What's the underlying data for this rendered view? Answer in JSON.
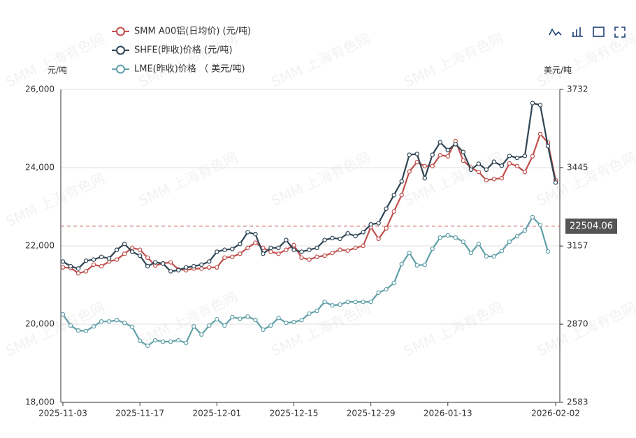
{
  "chart_data": {
    "type": "line",
    "watermark": "SMM 上海有色网",
    "y_label": "元/吨",
    "y2_label": "美元/吨",
    "categories": [
      "2025-11-03",
      null,
      null,
      null,
      null,
      null,
      null,
      null,
      null,
      null,
      "2025-11-17",
      null,
      null,
      null,
      null,
      null,
      null,
      null,
      null,
      null,
      "2025-12-01",
      null,
      null,
      null,
      null,
      null,
      null,
      null,
      null,
      null,
      "2025-12-15",
      null,
      null,
      null,
      null,
      null,
      null,
      null,
      null,
      null,
      "2025-12-29",
      null,
      null,
      null,
      null,
      null,
      null,
      null,
      null,
      null,
      "2026-01-13",
      null,
      null,
      null,
      null,
      null,
      null,
      null,
      null,
      null,
      null,
      null,
      null,
      null,
      "2026-02-02"
    ],
    "series": [
      {
        "name": "SMM A00铝(日均价)  (元/吨)",
        "color": "#c0504d",
        "axis": "y",
        "values": [
          21450,
          21440,
          21300,
          21350,
          21520,
          21480,
          21600,
          21650,
          21800,
          21950,
          21900,
          21700,
          21500,
          21550,
          21580,
          21400,
          21380,
          21420,
          21420,
          21450,
          21450,
          21700,
          21720,
          21800,
          21950,
          22080,
          21950,
          21850,
          21800,
          21900,
          22020,
          21700,
          21650,
          21720,
          21750,
          21820,
          21900,
          21880,
          21950,
          22000,
          22480,
          22180,
          22450,
          22880,
          23300,
          23900,
          24140,
          24040,
          24040,
          24320,
          24290,
          24680,
          24180,
          24000,
          23890,
          23680,
          23710,
          23730,
          24110,
          24040,
          23890,
          24290,
          24860,
          24640,
          23680
        ]
      },
      {
        "name": "SHFE(昨收)价格  (元/吨)",
        "color": "#2f4554",
        "axis": "y",
        "values": [
          21600,
          21480,
          21420,
          21620,
          21650,
          21720,
          21680,
          21900,
          22050,
          21850,
          21750,
          21480,
          21580,
          21550,
          21350,
          21380,
          21450,
          21480,
          21520,
          21600,
          21850,
          21900,
          21920,
          22050,
          22350,
          22300,
          21800,
          21950,
          21950,
          22150,
          21900,
          21850,
          21900,
          21950,
          22150,
          22200,
          22180,
          22320,
          22250,
          22350,
          22550,
          22580,
          22950,
          23300,
          23650,
          24330,
          24350,
          23730,
          24330,
          24650,
          24450,
          24600,
          24400,
          23950,
          24100,
          23950,
          24150,
          24050,
          24300,
          24250,
          24300,
          25650,
          25600,
          24550,
          23620
        ]
      },
      {
        "name": "LME(昨收)价格  （ 美元/吨)",
        "color": "#61a0a8",
        "axis": "y2",
        "values": [
          2906,
          2865,
          2847,
          2845,
          2862,
          2880,
          2880,
          2885,
          2875,
          2860,
          2809,
          2791,
          2811,
          2806,
          2806,
          2811,
          2801,
          2862,
          2832,
          2865,
          2888,
          2865,
          2896,
          2890,
          2898,
          2886,
          2850,
          2865,
          2893,
          2875,
          2878,
          2885,
          2909,
          2919,
          2952,
          2939,
          2942,
          2952,
          2952,
          2952,
          2952,
          2986,
          2998,
          3021,
          3091,
          3132,
          3086,
          3088,
          3147,
          3188,
          3196,
          3188,
          3173,
          3132,
          3165,
          3119,
          3119,
          3139,
          3173,
          3193,
          3214,
          3263,
          3234,
          3137,
          null
        ]
      }
    ],
    "ylim": [
      18000,
      26000
    ],
    "yticks": [
      {
        "value": 18000,
        "label": "18,000"
      },
      {
        "value": 20000,
        "label": "20,000"
      },
      {
        "value": 22000,
        "label": "22,000"
      },
      {
        "value": 24000,
        "label": "24,000"
      },
      {
        "value": 26000,
        "label": "26,000"
      }
    ],
    "y2lim": [
      2583,
      3732
    ],
    "y2ticks": [
      2583,
      2870,
      3157,
      3445,
      3732
    ],
    "markline": {
      "value": 22504.06,
      "color": "#c0504d"
    },
    "grid": true
  }
}
